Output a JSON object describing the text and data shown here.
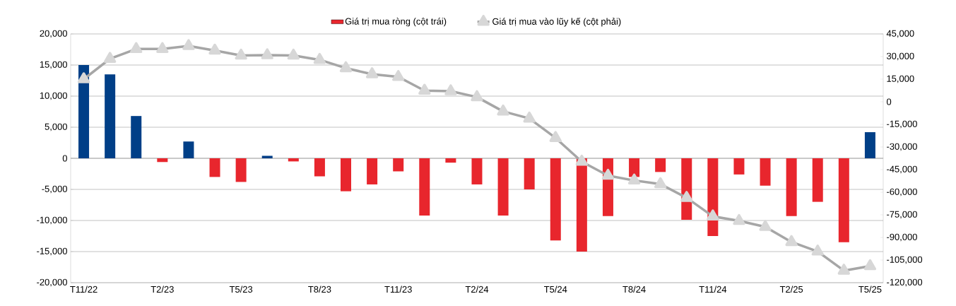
{
  "chart_data": {
    "type": "bar",
    "categories": [
      "T11/22",
      null,
      null,
      "T2/23",
      null,
      null,
      "T5/23",
      null,
      null,
      "T8/23",
      null,
      null,
      "T11/23",
      null,
      null,
      "T2/24",
      null,
      null,
      "T5/24",
      null,
      null,
      "T8/24",
      null,
      null,
      "T11/24",
      null,
      null,
      "T2/25",
      null,
      null,
      "T5/25"
    ],
    "series": [
      {
        "name": "Giá trị mua ròng (cột trái)",
        "color": "#e8262d",
        "colors": [
          "#003f87",
          "#003f87",
          "#003f87",
          "#e8262d",
          "#003f87",
          "#e8262d",
          "#e8262d",
          "#003f87",
          "#e8262d",
          "#e8262d",
          "#e8262d",
          "#e8262d",
          "#e8262d",
          "#e8262d",
          "#e8262d",
          "#e8262d",
          "#e8262d",
          "#e8262d",
          "#e8262d",
          "#e8262d",
          "#e8262d",
          "#e8262d",
          "#e8262d",
          "#e8262d",
          "#e8262d",
          "#e8262d",
          "#e8262d",
          "#e8262d",
          "#e8262d",
          "#e8262d",
          "#003f87"
        ],
        "values": [
          15000,
          13500,
          6800,
          -600,
          2700,
          -3000,
          -3800,
          400,
          -500,
          -2900,
          -5300,
          -4200,
          -2100,
          -9200,
          -700,
          -4200,
          -9200,
          -5000,
          -13200,
          -15000,
          -9300,
          -3000,
          -2200,
          -9900,
          -12500,
          -2600,
          -4400,
          -9300,
          -7000,
          -13500,
          4200
        ]
      },
      {
        "name": "Giá trị mua vào lũy kế (cột phải)",
        "type": "line",
        "axis": "y2",
        "color": "#a6a6a6",
        "marker": "triangle",
        "values": [
          15000,
          28500,
          35000,
          35000,
          37000,
          34000,
          30700,
          30900,
          30700,
          27800,
          22300,
          18300,
          16500,
          7400,
          7000,
          3100,
          -6400,
          -11100,
          -24000,
          -39700,
          -49000,
          -52200,
          -54600,
          -63700,
          -76000,
          -79000,
          -83000,
          -93000,
          -99300,
          -112000,
          -109000
        ]
      }
    ],
    "ylim": [
      -20000,
      20000
    ],
    "yticks": [
      {
        "value": -20000,
        "label": "-20,000"
      },
      {
        "value": -15000,
        "label": "-15,000"
      },
      {
        "value": -10000,
        "label": "-10,000"
      },
      {
        "value": -5000,
        "label": "-5,000"
      },
      0,
      {
        "value": 5000,
        "label": "5,000"
      },
      {
        "value": 10000,
        "label": "10,000"
      },
      {
        "value": 15000,
        "label": "15,000"
      },
      {
        "value": 20000,
        "label": "20,000"
      }
    ],
    "y2lim": [
      -120000,
      45000
    ],
    "y2ticks": [
      {
        "value": -120000,
        "label": "-120,000"
      },
      {
        "value": -105000,
        "label": "-105,000"
      },
      {
        "value": -90000,
        "label": "-90,000"
      },
      {
        "value": -75000,
        "label": "-75,000"
      },
      {
        "value": -60000,
        "label": "-60,000"
      },
      {
        "value": -45000,
        "label": "-45,000"
      },
      {
        "value": -30000,
        "label": "-30,000"
      },
      {
        "value": -15000,
        "label": "-15,000"
      },
      0,
      {
        "value": 15000,
        "label": "15,000"
      },
      {
        "value": 30000,
        "label": "30,000"
      },
      {
        "value": 45000,
        "label": "45,000"
      }
    ],
    "grid": "y",
    "legend": "top"
  }
}
